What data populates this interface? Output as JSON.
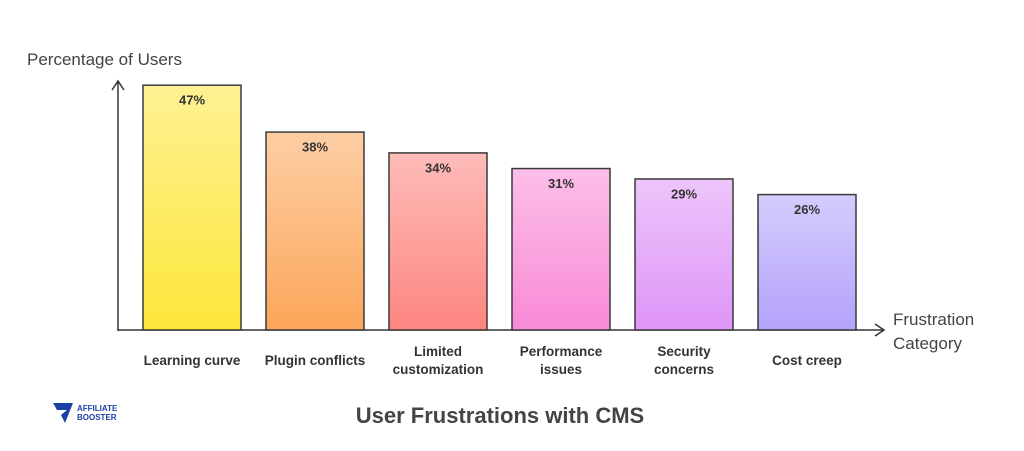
{
  "chart_data": {
    "type": "bar",
    "title": "User Frustrations with CMS",
    "y_label": "Percentage of Users",
    "x_label": "Frustration Category",
    "categories": [
      "Learning curve",
      "Plugin conflicts",
      "Limited customization",
      "Performance issues",
      "Security concerns",
      "Cost creep"
    ],
    "values": [
      47,
      38,
      34,
      31,
      29,
      26
    ],
    "value_labels": [
      "47%",
      "38%",
      "34%",
      "31%",
      "29%",
      "26%"
    ],
    "colors": [
      "#fde63a",
      "#fca65a",
      "#fd8580",
      "#f98ad6",
      "#de95f7",
      "#b4a2fb"
    ],
    "ylim": [
      0,
      48
    ]
  },
  "branding": {
    "line1": "AFFILIATE",
    "line2": "BOOSTER"
  }
}
